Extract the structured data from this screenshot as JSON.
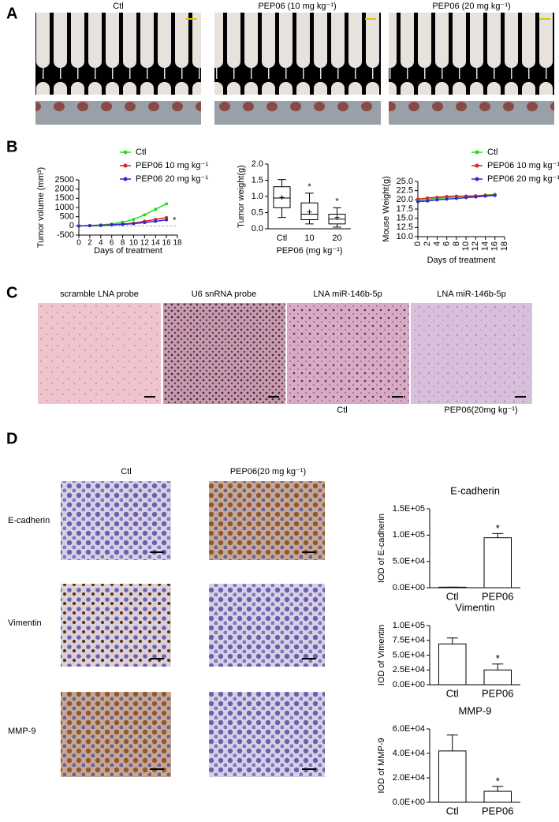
{
  "panel_labels": [
    "A",
    "B",
    "C",
    "D"
  ],
  "panel_a": {
    "captions": [
      "Ctl",
      "PEP06 (10 mg kg⁻¹)",
      "PEP06 (20 mg kg⁻¹)"
    ]
  },
  "panel_c": {
    "captions": [
      "scramble LNA probe",
      "U6 snRNA probe",
      "LNA miR-146b-5p",
      "LNA miR-146b-5p"
    ],
    "group_labels": [
      "Ctl",
      "PEP06(20mg kg⁻¹)"
    ]
  },
  "panel_d": {
    "column_labels": [
      "Ctl",
      "PEP06(20 mg kg⁻¹)"
    ],
    "row_labels": [
      "E-cadherin",
      "Vimentin",
      "MMP-9"
    ]
  },
  "chart_data": [
    {
      "type": "line",
      "ylabel": "Tumor volume (mm³)",
      "xlabel": "Days of treatment",
      "x": [
        0,
        2,
        4,
        6,
        8,
        10,
        12,
        14,
        16
      ],
      "xlim": [
        0,
        18
      ],
      "xticks": [
        0,
        2,
        4,
        6,
        8,
        10,
        12,
        14,
        16,
        18
      ],
      "ylim": [
        -500,
        2500
      ],
      "yticks": [
        -500,
        0,
        500,
        1000,
        1500,
        2000,
        2500
      ],
      "legend": "top right",
      "series": [
        {
          "name": "Ctl",
          "color": "#22dd22",
          "values": [
            0,
            20,
            50,
            100,
            200,
            350,
            600,
            900,
            1200
          ]
        },
        {
          "name": "PEP06 10 mg kg⁻¹",
          "color": "#e0202a",
          "values": [
            0,
            15,
            30,
            60,
            100,
            150,
            250,
            350,
            450
          ]
        },
        {
          "name": "PEP06 20 mg kg⁻¹",
          "color": "#2a2ad0",
          "values": [
            0,
            10,
            25,
            50,
            80,
            120,
            180,
            250,
            330
          ]
        }
      ],
      "annotations": [
        "*"
      ]
    },
    {
      "type": "box",
      "ylabel": "Tumor weight(g)",
      "xlabel": "PEP06 (mg kg⁻¹)",
      "categories": [
        "Ctl",
        "10",
        "20"
      ],
      "ylim": [
        0,
        2
      ],
      "yticks": [
        {
          "value": 0,
          "label": "0.0"
        },
        0.5,
        {
          "value": 1,
          "label": "1.0"
        },
        1.5,
        {
          "value": 2,
          "label": "2.0"
        }
      ],
      "boxes": [
        {
          "min": 0.35,
          "q1": 0.65,
          "median": 0.95,
          "q3": 1.3,
          "max": 1.52,
          "mean": 0.97
        },
        {
          "min": 0.15,
          "q1": 0.28,
          "median": 0.45,
          "q3": 0.8,
          "max": 1.1,
          "mean": 0.52
        },
        {
          "min": 0.05,
          "q1": 0.15,
          "median": 0.3,
          "q3": 0.45,
          "max": 0.65,
          "mean": 0.35
        }
      ],
      "annotations": [
        "*",
        "*"
      ]
    },
    {
      "type": "line",
      "ylabel": "Mouse Weight(g)",
      "xlabel": "Days of treatment",
      "x": [
        0,
        2,
        4,
        6,
        8,
        10,
        12,
        14,
        16
      ],
      "xlim": [
        0,
        18
      ],
      "xticks": [
        0,
        2,
        4,
        6,
        8,
        10,
        12,
        14,
        16,
        18
      ],
      "ylim": [
        10,
        25
      ],
      "yticks": [
        {
          "value": 10,
          "label": "10.0"
        },
        12.5,
        {
          "value": 15,
          "label": "15.0"
        },
        17.5,
        {
          "value": 20,
          "label": "20.0"
        },
        22.5,
        {
          "value": 25,
          "label": "25.0"
        }
      ],
      "legend": "top right",
      "series": [
        {
          "name": "Ctl",
          "color": "#22dd22",
          "values": [
            19.8,
            20.1,
            20.4,
            20.6,
            20.8,
            21.0,
            21.1,
            21.3,
            21.5
          ]
        },
        {
          "name": "PEP06 10 mg kg⁻¹",
          "color": "#e0202a",
          "values": [
            20.2,
            20.5,
            20.7,
            20.9,
            21.0,
            21.0,
            21.1,
            21.2,
            21.3
          ]
        },
        {
          "name": "PEP06 20 mg kg⁻¹",
          "color": "#2a2ad0",
          "values": [
            19.5,
            19.7,
            20.0,
            20.2,
            20.4,
            20.6,
            20.8,
            21.0,
            21.2
          ]
        }
      ],
      "annotations": []
    },
    {
      "type": "bar",
      "title": "E-cadherin",
      "ylabel": "IOD of E-cadherin",
      "categories": [
        "Ctl",
        "PEP06"
      ],
      "values": [
        1000,
        95000
      ],
      "errors": [
        0,
        8000
      ],
      "ylim": [
        0,
        150000
      ],
      "yticks": [
        {
          "value": 0,
          "label": "0.0E+00"
        },
        {
          "value": 50000,
          "label": "5.0E+04"
        },
        {
          "value": 100000,
          "label": "1.0E+05"
        },
        {
          "value": 150000,
          "label": "1.5E+05"
        }
      ],
      "annotations": [
        "*"
      ]
    },
    {
      "type": "bar",
      "title": "Vimentin",
      "ylabel": "IOD of Vimentin",
      "categories": [
        "Ctl",
        "PEP06"
      ],
      "values": [
        69000,
        25000
      ],
      "errors": [
        10000,
        10000
      ],
      "ylim": [
        0,
        100000
      ],
      "yticks": [
        {
          "value": 0,
          "label": "0.0E+00"
        },
        {
          "value": 25000,
          "label": "2.5E+04"
        },
        {
          "value": 50000,
          "label": "5.0E+04"
        },
        {
          "value": 75000,
          "label": "7.5E+04"
        },
        {
          "value": 100000,
          "label": "1.0E+05"
        }
      ],
      "annotations": [
        "*"
      ]
    },
    {
      "type": "bar",
      "title": "MMP-9",
      "ylabel": "IOD of MMP-9",
      "categories": [
        "Ctl",
        "PEP06"
      ],
      "values": [
        42000,
        9000
      ],
      "errors": [
        13000,
        4000
      ],
      "ylim": [
        0,
        60000
      ],
      "yticks": [
        {
          "value": 0,
          "label": "0.0E+00"
        },
        {
          "value": 20000,
          "label": "2.0E+04"
        },
        {
          "value": 40000,
          "label": "4.0E+04"
        },
        {
          "value": 60000,
          "label": "6.0E+04"
        }
      ],
      "annotations": [
        "*"
      ]
    }
  ]
}
